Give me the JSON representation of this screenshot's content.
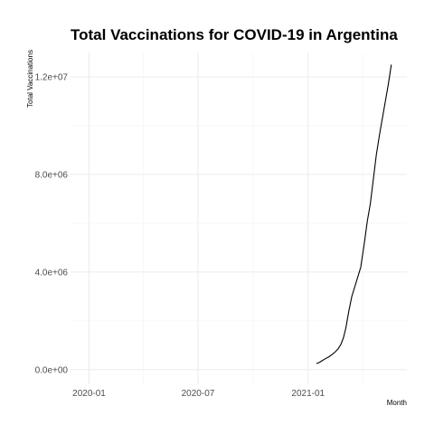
{
  "chart_data": {
    "type": "line",
    "title": "Total Vaccinations for COVID-19 in Argentina",
    "xlabel": "Month",
    "ylabel": "Total Vaccinations",
    "x_ticks": [
      "2020-01",
      "2020-07",
      "2021-01"
    ],
    "y_ticks": [
      "0.0e+00",
      "4.0e+06",
      "8.0e+06",
      "1.2e+07"
    ],
    "y_tick_values": [
      0,
      4000000,
      8000000,
      12000000
    ],
    "xlim": [
      "2019-12-01",
      "2021-06-15"
    ],
    "ylim": [
      -600000,
      13000000
    ],
    "grid": true,
    "series": [
      {
        "values": [
          {
            "x": "2021-01-15",
            "y": 250000
          },
          {
            "x": "2021-01-20",
            "y": 300000
          },
          {
            "x": "2021-01-25",
            "y": 380000
          },
          {
            "x": "2021-01-30",
            "y": 450000
          },
          {
            "x": "2021-02-05",
            "y": 530000
          },
          {
            "x": "2021-02-10",
            "y": 620000
          },
          {
            "x": "2021-02-15",
            "y": 720000
          },
          {
            "x": "2021-02-20",
            "y": 850000
          },
          {
            "x": "2021-02-25",
            "y": 1050000
          },
          {
            "x": "2021-03-01",
            "y": 1300000
          },
          {
            "x": "2021-03-05",
            "y": 1700000
          },
          {
            "x": "2021-03-10",
            "y": 2400000
          },
          {
            "x": "2021-03-15",
            "y": 3000000
          },
          {
            "x": "2021-03-20",
            "y": 3400000
          },
          {
            "x": "2021-03-25",
            "y": 3800000
          },
          {
            "x": "2021-03-30",
            "y": 4200000
          },
          {
            "x": "2021-04-05",
            "y": 5200000
          },
          {
            "x": "2021-04-10",
            "y": 6100000
          },
          {
            "x": "2021-04-15",
            "y": 6800000
          },
          {
            "x": "2021-04-20",
            "y": 7800000
          },
          {
            "x": "2021-04-25",
            "y": 8800000
          },
          {
            "x": "2021-04-30",
            "y": 9600000
          },
          {
            "x": "2021-05-05",
            "y": 10300000
          },
          {
            "x": "2021-05-10",
            "y": 11000000
          },
          {
            "x": "2021-05-15",
            "y": 11700000
          },
          {
            "x": "2021-05-20",
            "y": 12500000
          }
        ]
      }
    ]
  }
}
